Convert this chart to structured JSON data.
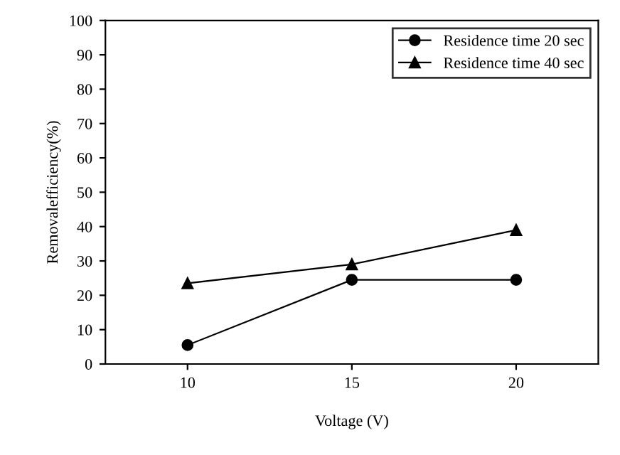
{
  "chart_data": {
    "type": "line",
    "xlabel": "Voltage (V)",
    "ylabel": "Removalefficiency(%)",
    "x": [
      10,
      15,
      20
    ],
    "series": [
      {
        "name": "Residence time 20 sec",
        "color": "#000000",
        "marker": "circle",
        "values": [
          5.5,
          24.5,
          24.5
        ]
      },
      {
        "name": "Residence time 40 sec",
        "color": "#000000",
        "marker": "triangle",
        "values": [
          23.5,
          29,
          39
        ]
      }
    ],
    "xlim": [
      7.5,
      22.5
    ],
    "xticks": [
      10,
      15,
      20
    ],
    "ylim": [
      0,
      100
    ],
    "yticks": [
      0,
      10,
      20,
      30,
      40,
      50,
      60,
      70,
      80,
      90,
      100
    ],
    "grid": false,
    "legend": "top right",
    "line_style": "solid"
  }
}
